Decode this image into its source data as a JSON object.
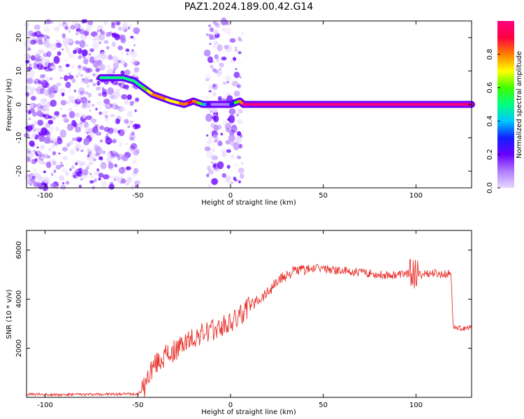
{
  "title": "PAZ1.2024.189.00.42.G14",
  "colors": {
    "snr_line": "#e8302a",
    "background": "#ffffff",
    "axis": "#000000",
    "colormap": [
      "#ffffff",
      "#e8d8ff",
      "#b07cff",
      "#6a00ff",
      "#1020ff",
      "#00c8ff",
      "#00ff80",
      "#40ff00",
      "#ffff00",
      "#ff8000",
      "#ff0040",
      "#ff0080"
    ]
  },
  "chart_data": [
    {
      "type": "heatmap",
      "xlabel": "Height of straight line (km)",
      "ylabel": "Frequency (Hz)",
      "xlim": [
        -110,
        130
      ],
      "ylim": [
        -25,
        25
      ],
      "x_ticks": [
        -100,
        -50,
        0,
        50,
        100
      ],
      "y_ticks": [
        -20,
        -10,
        0,
        10,
        20
      ],
      "colorbar": {
        "label": "Normalized spectral amplitude",
        "lim": [
          0.0,
          1.0
        ],
        "ticks": [
          0.0,
          0.2,
          0.4,
          0.6,
          0.8
        ]
      },
      "ridge": [
        {
          "x": -70,
          "y": 8
        },
        {
          "x": -65,
          "y": 8
        },
        {
          "x": -58,
          "y": 8
        },
        {
          "x": -52,
          "y": 7
        },
        {
          "x": -47,
          "y": 5
        },
        {
          "x": -42,
          "y": 3
        },
        {
          "x": -37,
          "y": 2
        },
        {
          "x": -32,
          "y": 1
        },
        {
          "x": -25,
          "y": 0
        },
        {
          "x": -20,
          "y": 1
        },
        {
          "x": -15,
          "y": 0
        },
        {
          "x": -5,
          "y": 0
        },
        {
          "x": 0,
          "y": 0
        },
        {
          "x": 5,
          "y": 1
        },
        {
          "x": 7,
          "y": 0
        },
        {
          "x": 130,
          "y": 0
        }
      ],
      "ridge_amplitude": [
        {
          "x": -70,
          "a": 0.45
        },
        {
          "x": -58,
          "a": 0.5
        },
        {
          "x": -47,
          "a": 0.5
        },
        {
          "x": -40,
          "a": 0.8
        },
        {
          "x": -30,
          "a": 0.7
        },
        {
          "x": -20,
          "a": 0.9
        },
        {
          "x": -10,
          "a": 0.1
        },
        {
          "x": 0,
          "a": 0.15
        },
        {
          "x": 7,
          "a": 0.95
        },
        {
          "x": 130,
          "a": 0.95
        }
      ]
    },
    {
      "type": "line",
      "xlabel": "Height of straight line (km)",
      "ylabel": "SNR (10 * v/v)",
      "xlim": [
        -110,
        130
      ],
      "ylim": [
        0,
        6800
      ],
      "x_ticks": [
        -100,
        -50,
        0,
        50,
        100
      ],
      "y_ticks": [
        2000,
        4000,
        6000
      ],
      "series": [
        {
          "values_x": [
            -110,
            -100,
            -90,
            -80,
            -70,
            -60,
            -50,
            -47,
            -45,
            -43,
            -41,
            -38,
            -35,
            -30,
            -25,
            -20,
            -15,
            -10,
            -5,
            0,
            5,
            10,
            15,
            20,
            25,
            30,
            35,
            40,
            45,
            50,
            55,
            60,
            65,
            70,
            75,
            80,
            85,
            90,
            95,
            98,
            100,
            102,
            105,
            110,
            115,
            119,
            120,
            121,
            125,
            130
          ],
          "values_y": [
            120,
            120,
            110,
            120,
            130,
            130,
            150,
            300,
            700,
            1100,
            1300,
            1500,
            1700,
            1900,
            2200,
            2400,
            2600,
            2700,
            2850,
            3000,
            3300,
            3700,
            4000,
            4300,
            4700,
            5000,
            5150,
            5200,
            5250,
            5250,
            5200,
            5150,
            5100,
            5100,
            5050,
            5000,
            5000,
            5000,
            5050,
            5100,
            5000,
            5000,
            5050,
            5050,
            5000,
            5050,
            2900,
            2850,
            2800,
            2850
          ]
        }
      ]
    }
  ]
}
